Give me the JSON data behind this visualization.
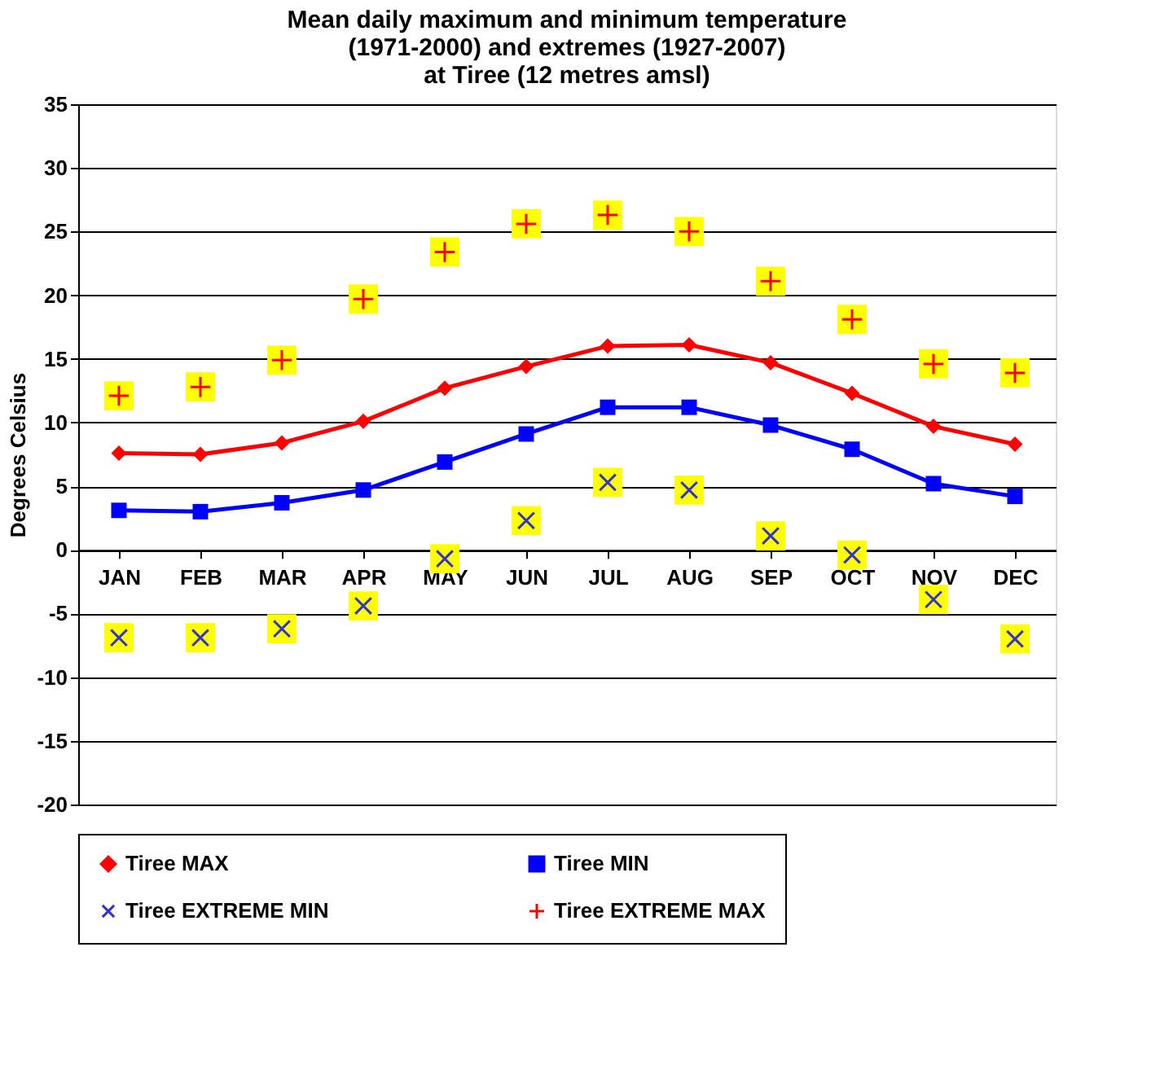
{
  "chart_data": {
    "type": "line",
    "title": [
      "Mean daily maximum and minimum temperature",
      "(1971-2000) and extremes (1927-2007)",
      "at Tiree (12 metres amsl)"
    ],
    "ylabel": "Degrees Celsius",
    "categories": [
      "JAN",
      "FEB",
      "MAR",
      "APR",
      "MAY",
      "JUN",
      "JUL",
      "AUG",
      "SEP",
      "OCT",
      "NOV",
      "DEC"
    ],
    "series": [
      {
        "name": "Tiree MAX",
        "marker": "diamond",
        "color": "#ff0000",
        "values": [
          7.6,
          7.5,
          8.4,
          10.1,
          12.7,
          14.4,
          16.0,
          16.1,
          14.7,
          12.3,
          9.7,
          8.3
        ]
      },
      {
        "name": "Tiree MIN",
        "marker": "square",
        "color": "#0000ff",
        "values": [
          3.1,
          3.0,
          3.7,
          4.7,
          6.9,
          9.1,
          11.2,
          11.2,
          9.8,
          7.9,
          5.2,
          4.2
        ]
      },
      {
        "name": "Tiree EXTREME MIN",
        "type": "scatter",
        "marker": "x",
        "color": "#3333cc",
        "values": [
          -6.9,
          -6.9,
          -6.2,
          -4.4,
          -0.7,
          2.3,
          5.3,
          4.7,
          1.1,
          -0.4,
          -3.9,
          -7.0
        ]
      },
      {
        "name": "Tiree EXTREME MAX",
        "type": "scatter",
        "marker": "cross",
        "color": "#ff0000",
        "values": [
          12.1,
          12.8,
          14.9,
          19.7,
          23.4,
          25.6,
          26.3,
          25.0,
          21.1,
          18.1,
          14.6,
          13.9
        ]
      }
    ],
    "ylim": [
      -20,
      35
    ],
    "yticks": [
      -20,
      -15,
      -10,
      -5,
      0,
      5,
      10,
      15,
      20,
      25,
      30,
      35
    ],
    "grid": "y",
    "legend": "bottom"
  }
}
